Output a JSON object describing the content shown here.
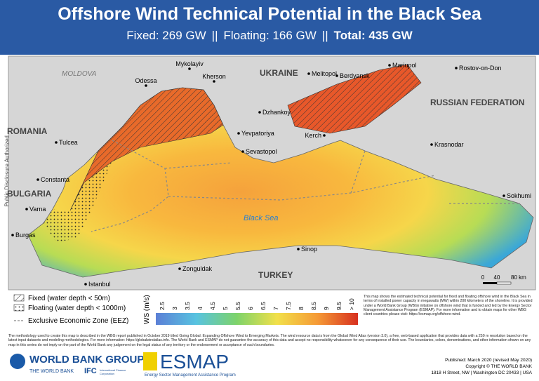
{
  "header": {
    "title": "Offshore Wind Technical Potential in the Black Sea",
    "subtitle": [
      "Fixed: 269 GW",
      "||",
      "Floating: 166 GW",
      "||",
      "Total: 435 GW"
    ]
  },
  "side_label": "Public Disclosure Authorized",
  "map": {
    "countries": [
      "MOLDOVA",
      "UKRAINE",
      "RUSSIAN FEDERATION",
      "ROMANIA",
      "BULGARIA",
      "TURKEY"
    ],
    "cities": [
      "Mykolayiv",
      "Kherson",
      "Odessa",
      "Melitopol",
      "Berdyansk",
      "Mariupol",
      "Rostov-on-Don",
      "Dzhankoy",
      "Kerch",
      "Krasnodar",
      "Yevpatoriya",
      "Sevastopol",
      "Tulcea",
      "Constanta",
      "Varna",
      "Burgas",
      "Sinop",
      "Zonguldak",
      "Istanbul",
      "Sokhumi"
    ],
    "sea": "Black Sea",
    "scale": [
      "0",
      "40",
      "80 km"
    ]
  },
  "legend": {
    "items": [
      "Fixed (water depth < 50m)",
      "Floating (water depth < 1000m)",
      "Exclusive Economic Zone (EEZ)"
    ],
    "ws_title": "WS (m/s)",
    "ws_ticks": [
      "2.5",
      "3",
      "3.5",
      "4",
      "4.5",
      "5",
      "5.5",
      "6",
      "6.5",
      "7",
      "7.5",
      "8",
      "8.5",
      "9",
      "9.5",
      "> 10"
    ]
  },
  "notes": {
    "description": "This map shows the estimated technical potential for fixed and floating offshore wind in the Black Sea in terms of installed power capacity in megawatts (MW) within 200 kilometers of the shoreline. It is provided under a World Bank Group (WBG) initiative on offshore wind that is funded and led by the Energy Sector Management Assistance Program (ESMAP). For more information and to obtain maps for other WBG client countries please visit: https://esmap.org/offshore-wind.",
    "methodology": "The methodology used to create this map is described in the WBG report published in October 2019 titled Going Global: Expanding Offshore Wind to Emerging Markets. The wind resource data is from the Global Wind Atlas (version 3.0), a free, web-based application that provides data with a 250 m resolution based on the latest input datasets and modeling methodologies. For more information: https://globalwindatlas.info. The World Bank and ESMAP do not guarantee the accuracy of this data and accept no responsibility whatsoever for any consequence of their use. The boundaries, colors, denominations, and other information shown on any map in this series do not imply on the part of the World Bank any judgement on the legal status of any territory or the endorsement or acceptance of such boundaries."
  },
  "footer": {
    "wbg": "WORLD BANK GROUP",
    "wb": "THE WORLD BANK",
    "ifc": "IFC",
    "ifc_full": "International Finance Corporation",
    "esmap": "ESMAP",
    "esmap_full": "Energy Sector Management Assistance Program",
    "published": "Published: March 2020 (revised May 2020)",
    "copyright": "Copyright © THE WORLD BANK",
    "address": "1818 H Street, NW | Washington DC 20433 | USA"
  }
}
